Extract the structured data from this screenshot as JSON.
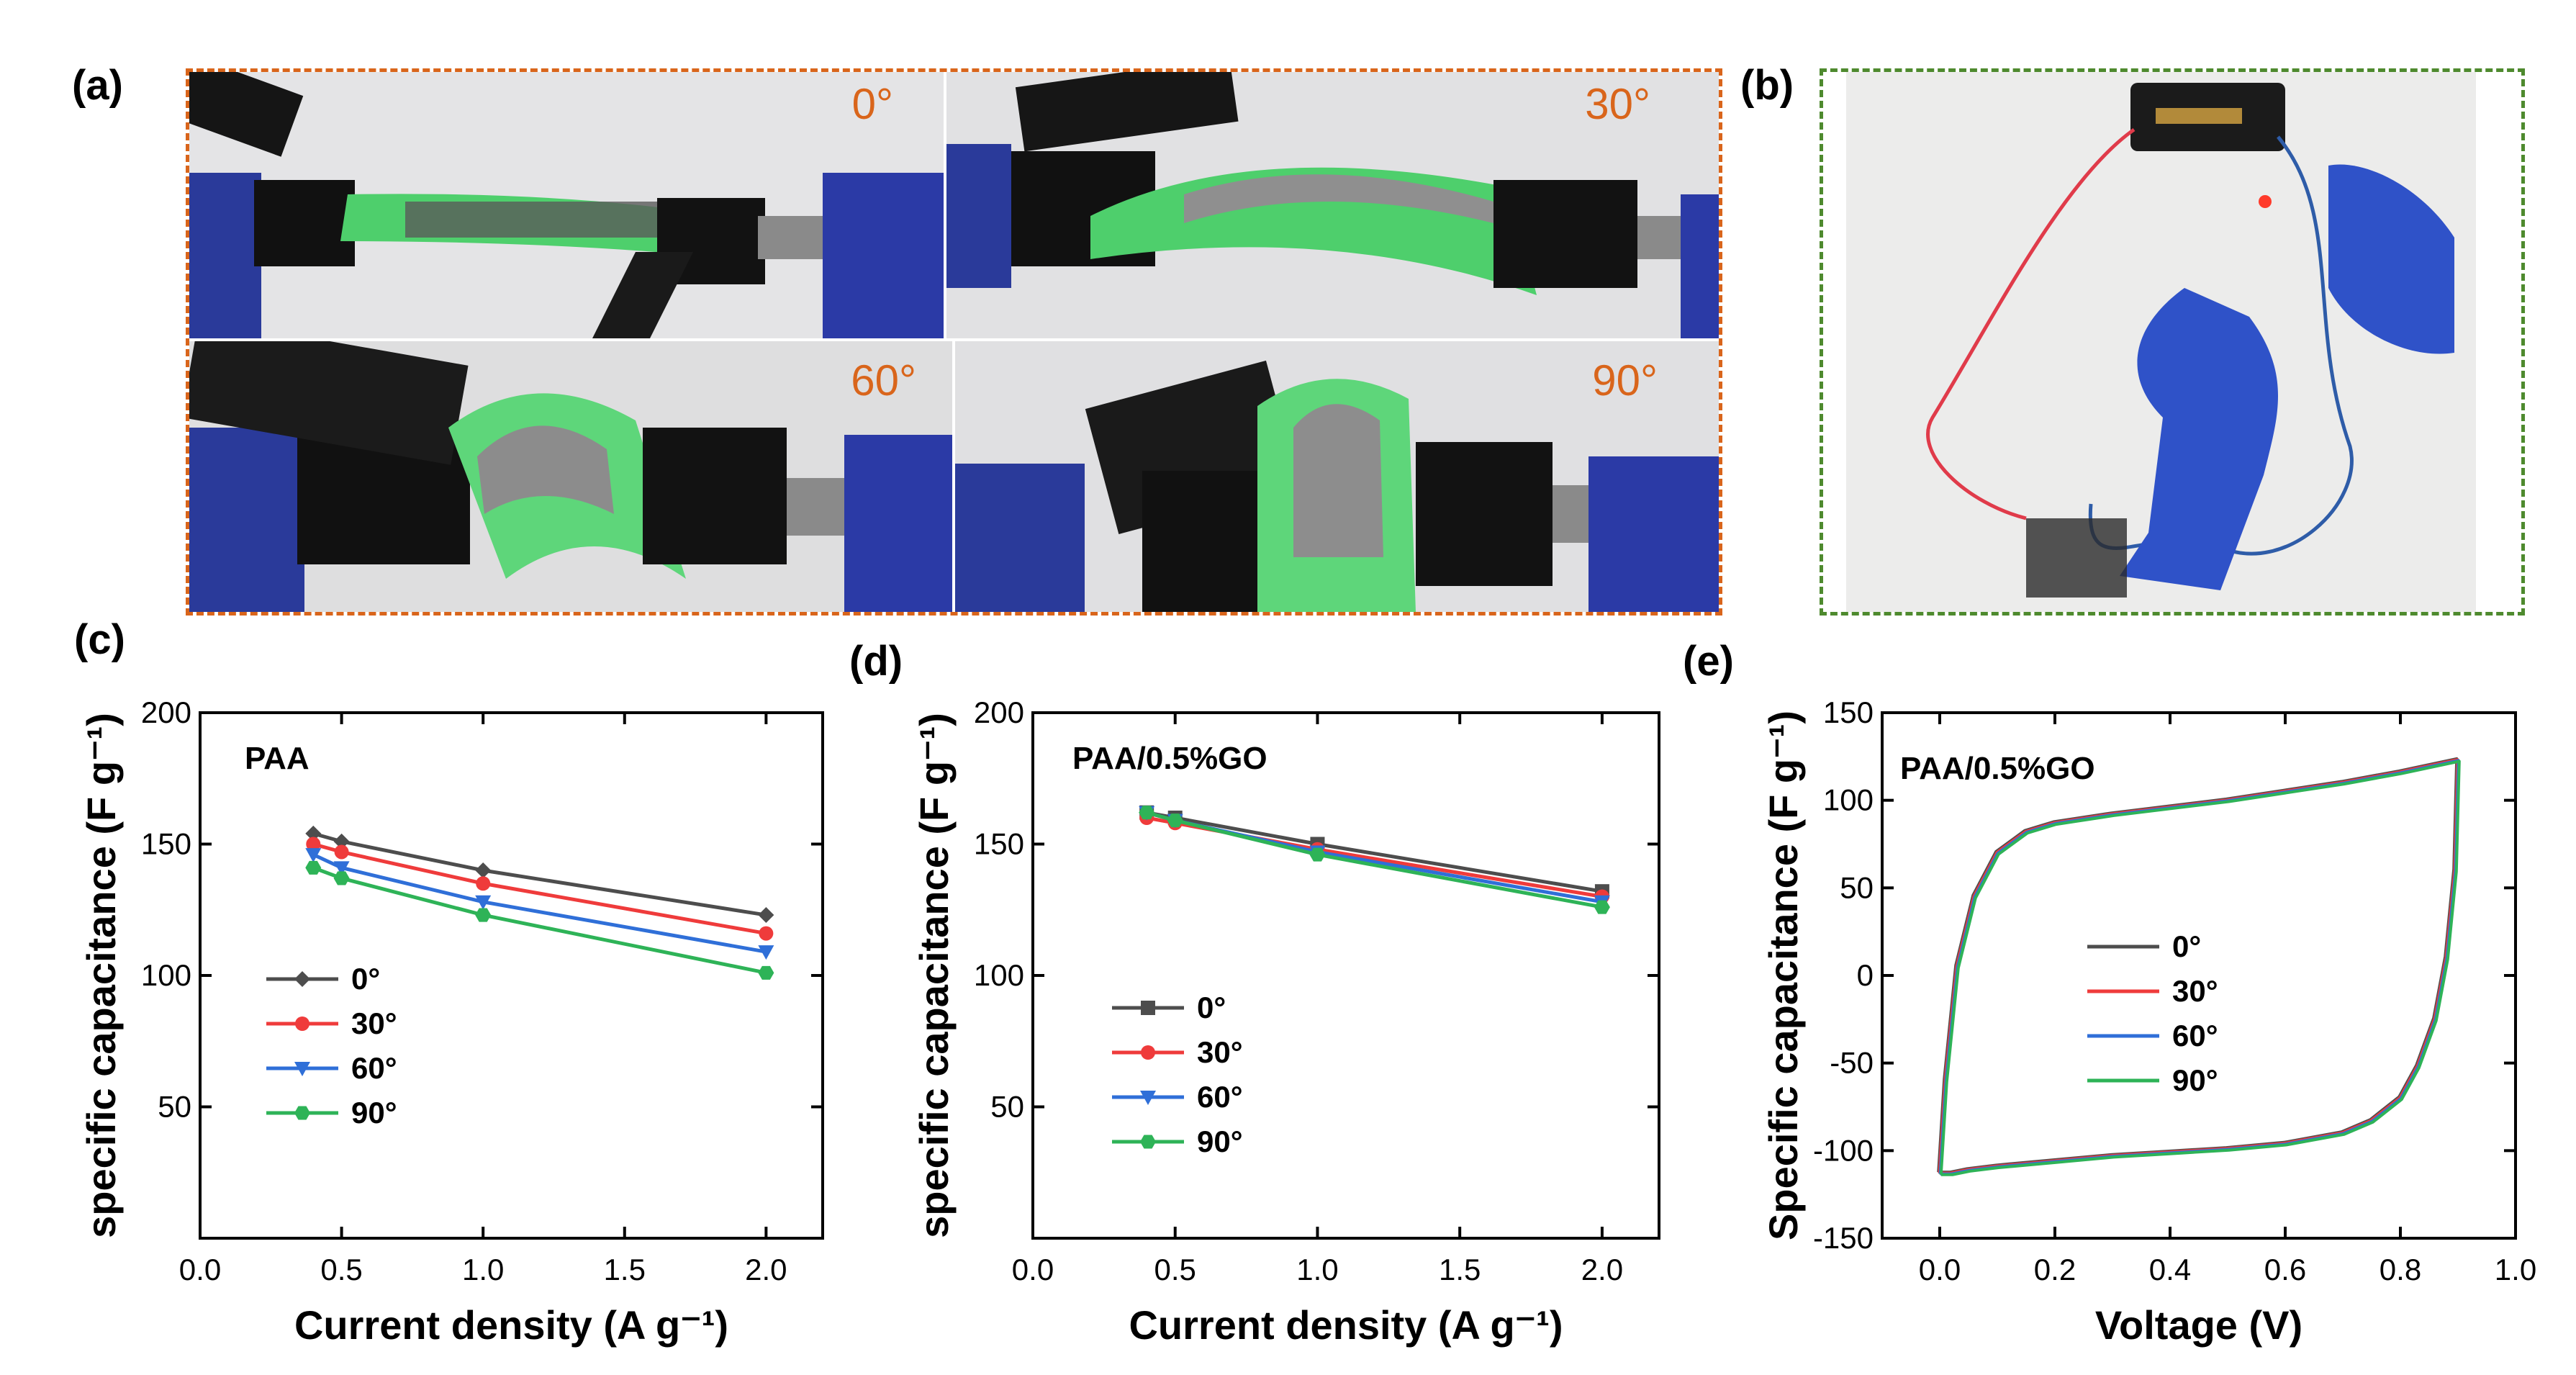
{
  "panels": {
    "a": {
      "letter": "(a)",
      "angles": [
        "0°",
        "30°",
        "60°",
        "90°"
      ],
      "frame_color": "#d9651b"
    },
    "b": {
      "letter": "(b)",
      "frame_color": "#4e8a2e"
    },
    "c": {
      "letter": "(c)"
    },
    "d": {
      "letter": "(d)"
    },
    "e": {
      "letter": "(e)"
    }
  },
  "colors": {
    "c0": "#4d4d4d",
    "c30": "#ef3b3b",
    "c60": "#2f6fd8",
    "c90": "#2eb357",
    "cv_green": "#3cb371"
  },
  "chart_data": [
    {
      "id": "c",
      "type": "line",
      "title": "PAA",
      "xlabel": "Current density (A g⁻¹)",
      "ylabel": "specific capacitance (F g⁻¹)",
      "xlim": [
        0,
        2.2
      ],
      "ylim": [
        0,
        200
      ],
      "xticks": [
        "0.0",
        "0.5",
        "1.0",
        "1.5",
        "2.0"
      ],
      "yticks": [
        "50",
        "100",
        "150",
        "200"
      ],
      "legend_position": "middle-left",
      "x": [
        0.4,
        0.5,
        1.0,
        2.0
      ],
      "series": [
        {
          "name": "0°",
          "marker": "diamond",
          "color": "#4d4d4d",
          "values": [
            154,
            151,
            140,
            123
          ]
        },
        {
          "name": "30°",
          "marker": "circle",
          "color": "#ef3b3b",
          "values": [
            150,
            147,
            135,
            116
          ]
        },
        {
          "name": "60°",
          "marker": "triangle-down",
          "color": "#2f6fd8",
          "values": [
            146,
            141,
            128,
            109
          ]
        },
        {
          "name": "90°",
          "marker": "hexagon",
          "color": "#2eb357",
          "values": [
            141,
            137,
            123,
            101
          ]
        }
      ]
    },
    {
      "id": "d",
      "type": "line",
      "title": "PAA/0.5%GO",
      "xlabel": "Current density (A g⁻¹)",
      "ylabel": "specific capacitance (F g⁻¹)",
      "xlim": [
        0,
        2.2
      ],
      "ylim": [
        0,
        200
      ],
      "xticks": [
        "0.0",
        "0.5",
        "1.0",
        "1.5",
        "2.0"
      ],
      "yticks": [
        "50",
        "100",
        "150",
        "200"
      ],
      "legend_position": "middle-left",
      "x": [
        0.4,
        0.5,
        1.0,
        2.0
      ],
      "series": [
        {
          "name": "0°",
          "marker": "square",
          "color": "#4d4d4d",
          "values": [
            162,
            160,
            150,
            132
          ]
        },
        {
          "name": "30°",
          "marker": "circle",
          "color": "#ef3b3b",
          "values": [
            160,
            158,
            148,
            130
          ]
        },
        {
          "name": "60°",
          "marker": "triangle-down",
          "color": "#2f6fd8",
          "values": [
            162,
            159,
            147,
            128
          ]
        },
        {
          "name": "90°",
          "marker": "hexagon",
          "color": "#2eb357",
          "values": [
            162,
            159,
            146,
            126
          ]
        }
      ]
    },
    {
      "id": "e",
      "type": "line",
      "title": "PAA/0.5%GO",
      "xlabel": "Voltage (V)",
      "ylabel": "Specific capacitance (F g⁻¹)",
      "xlim": [
        -0.1,
        1.0
      ],
      "ylim": [
        -150,
        150
      ],
      "xticks": [
        "0.0",
        "0.2",
        "0.4",
        "0.6",
        "0.8",
        "1.0"
      ],
      "yticks": [
        "-150",
        "-100",
        "-50",
        "0",
        "50",
        "100",
        "150"
      ],
      "legend_position": "center",
      "series": [
        {
          "name": "0°",
          "color": "#4d4d4d",
          "x": [
            0.0,
            0.01,
            0.03,
            0.06,
            0.1,
            0.15,
            0.2,
            0.3,
            0.4,
            0.5,
            0.6,
            0.7,
            0.8,
            0.9,
            0.895,
            0.88,
            0.86,
            0.83,
            0.8,
            0.75,
            0.7,
            0.6,
            0.5,
            0.4,
            0.3,
            0.2,
            0.1,
            0.05,
            0.02,
            0.0
          ],
          "values": [
            -113,
            -60,
            5,
            45,
            70,
            82,
            87,
            92,
            96,
            100,
            105,
            110,
            116,
            123,
            60,
            10,
            -25,
            -52,
            -70,
            -83,
            -90,
            -96,
            -99,
            -101,
            -103,
            -106,
            -109,
            -111,
            -113,
            -113
          ]
        },
        {
          "name": "30°",
          "color": "#ef3b3b"
        },
        {
          "name": "60°",
          "color": "#2f6fd8"
        },
        {
          "name": "90°",
          "color": "#2eb357"
        }
      ]
    }
  ]
}
